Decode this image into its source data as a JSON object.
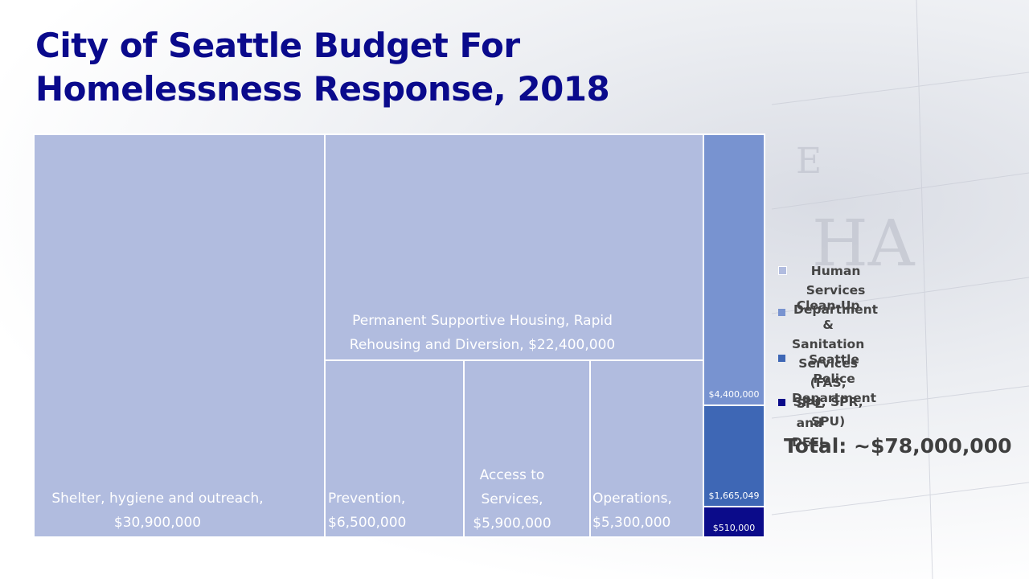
{
  "title": {
    "line1": "City of Seattle Budget For",
    "line2": "Homelessness Response, 2018"
  },
  "colors": {
    "human_services": "#b1bcdf",
    "cleanup": "#7893d0",
    "police": "#3e67b5",
    "spl_deel": "#0b0b8a",
    "title": "#0a0a8c"
  },
  "chart_data": {
    "type": "treemap",
    "title": "City of Seattle Budget For Homelessness Response, 2018",
    "unit": "USD",
    "series": [
      {
        "name": "Human Services Department",
        "items": [
          {
            "label": "Shelter, hygiene and outreach,",
            "value_text": "$30,900,000",
            "value": 30900000
          },
          {
            "label": "Permanent Supportive Housing, Rapid Rehousing and Diversion,",
            "value_text": "$22,400,000",
            "value": 22400000
          },
          {
            "label": "Prevention,",
            "value_text": "$6,500,000",
            "value": 6500000
          },
          {
            "label": "Access to Services,",
            "value_text": "$5,900,000",
            "value": 5900000
          },
          {
            "label": "Operations,",
            "value_text": "$5,300,000",
            "value": 5300000
          }
        ]
      },
      {
        "name": "Clean-Up & Sanitation Services (FAS, SPU, SPR, SPU)",
        "items": [
          {
            "label": "",
            "value_text": "$4,400,000",
            "value": 4400000
          }
        ]
      },
      {
        "name": "Seattle Police Department",
        "items": [
          {
            "label": "",
            "value_text": "$1,665,049",
            "value": 1665049
          }
        ]
      },
      {
        "name": "SPL and DEEL",
        "items": [
          {
            "label": "",
            "value_text": "$510,000",
            "value": 510000
          }
        ]
      }
    ],
    "total_text": "Total: ~$78,000,000"
  },
  "legend": [
    {
      "line1": "Human Services Department",
      "line2": ""
    },
    {
      "line1": "Clean-Up & Sanitation Services",
      "line2": "(FAS, SPU, SPR, SPU)"
    },
    {
      "line1": "Seattle Police Department",
      "line2": ""
    },
    {
      "line1": "SPL and DEEL",
      "line2": ""
    }
  ]
}
